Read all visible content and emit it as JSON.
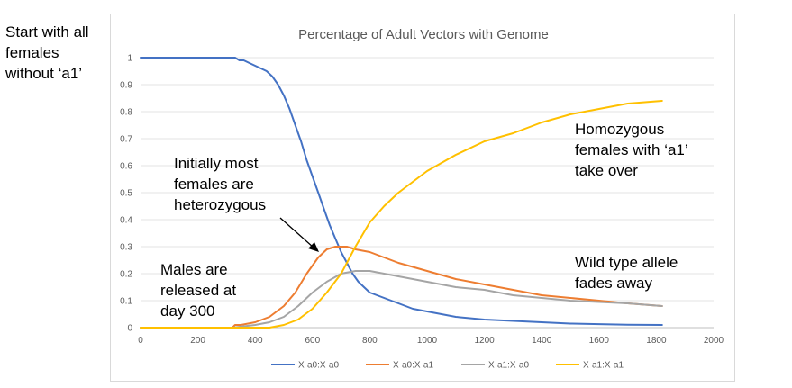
{
  "chart_data": {
    "type": "line",
    "title": "Percentage of Adult Vectors with Genome",
    "xlabel": "",
    "ylabel": "",
    "xlim": [
      0,
      2000
    ],
    "ylim": [
      0,
      1
    ],
    "x_ticks": [
      "0",
      "200",
      "400",
      "600",
      "800",
      "1000",
      "1200",
      "1400",
      "1600",
      "1800",
      "2000"
    ],
    "y_ticks": [
      "0",
      "0.1",
      "0.2",
      "0.3",
      "0.4",
      "0.5",
      "0.6",
      "0.7",
      "0.8",
      "0.9",
      "1"
    ],
    "grid": true,
    "legend_position": "bottom",
    "series": [
      {
        "name": "X-a0:X-a0",
        "color": "#4472c4",
        "x": [
          0,
          300,
          330,
          345,
          360,
          380,
          400,
          420,
          440,
          460,
          480,
          500,
          520,
          540,
          560,
          580,
          600,
          620,
          640,
          660,
          680,
          700,
          720,
          740,
          760,
          780,
          800,
          850,
          900,
          950,
          1000,
          1100,
          1200,
          1300,
          1400,
          1500,
          1600,
          1700,
          1820
        ],
        "y": [
          1,
          1,
          1,
          0.99,
          0.99,
          0.98,
          0.97,
          0.96,
          0.95,
          0.93,
          0.9,
          0.86,
          0.81,
          0.75,
          0.69,
          0.62,
          0.56,
          0.5,
          0.44,
          0.38,
          0.33,
          0.28,
          0.24,
          0.2,
          0.17,
          0.15,
          0.13,
          0.11,
          0.09,
          0.07,
          0.06,
          0.04,
          0.03,
          0.025,
          0.02,
          0.015,
          0.013,
          0.011,
          0.01
        ]
      },
      {
        "name": "X-a0:X-a1",
        "color": "#ed7d31",
        "x": [
          0,
          320,
          330,
          350,
          400,
          450,
          500,
          540,
          580,
          620,
          650,
          680,
          700,
          720,
          750,
          800,
          900,
          1000,
          1100,
          1200,
          1300,
          1400,
          1500,
          1600,
          1700,
          1820
        ],
        "y": [
          0,
          0,
          0.01,
          0.01,
          0.02,
          0.04,
          0.08,
          0.13,
          0.2,
          0.26,
          0.29,
          0.3,
          0.3,
          0.3,
          0.29,
          0.28,
          0.24,
          0.21,
          0.18,
          0.16,
          0.14,
          0.12,
          0.11,
          0.1,
          0.09,
          0.08
        ]
      },
      {
        "name": "X-a1:X-a0",
        "color": "#a5a5a5",
        "x": [
          0,
          320,
          400,
          450,
          500,
          550,
          600,
          650,
          700,
          750,
          800,
          850,
          900,
          1000,
          1100,
          1200,
          1300,
          1400,
          1500,
          1600,
          1700,
          1820
        ],
        "y": [
          0,
          0,
          0.01,
          0.02,
          0.04,
          0.08,
          0.13,
          0.17,
          0.2,
          0.21,
          0.21,
          0.2,
          0.19,
          0.17,
          0.15,
          0.14,
          0.12,
          0.11,
          0.1,
          0.095,
          0.09,
          0.08
        ]
      },
      {
        "name": "X-a1:X-a1",
        "color": "#ffc000",
        "x": [
          0,
          450,
          500,
          550,
          600,
          650,
          700,
          750,
          800,
          850,
          900,
          1000,
          1100,
          1200,
          1300,
          1400,
          1500,
          1600,
          1700,
          1820
        ],
        "y": [
          0,
          0,
          0.01,
          0.03,
          0.07,
          0.13,
          0.2,
          0.3,
          0.39,
          0.45,
          0.5,
          0.58,
          0.64,
          0.69,
          0.72,
          0.76,
          0.79,
          0.81,
          0.83,
          0.84
        ]
      }
    ],
    "annotations": [
      {
        "lines": [
          "Start with all",
          "females",
          "without ‘a1’"
        ]
      },
      {
        "lines": [
          "Initially most",
          "females are",
          "heterozygous"
        ]
      },
      {
        "lines": [
          "Males are",
          "released at",
          "day 300"
        ]
      },
      {
        "lines": [
          "Homozygous",
          "females with ‘a1’",
          "take over"
        ]
      },
      {
        "lines": [
          "Wild type allele",
          "fades away"
        ]
      }
    ]
  }
}
